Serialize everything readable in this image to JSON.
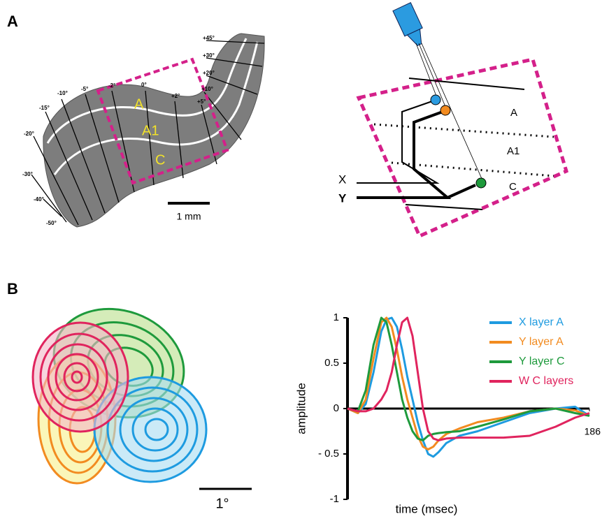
{
  "panel_labels": [
    "A",
    "B"
  ],
  "lgn_map": {
    "degree_labels": [
      "+45°",
      "+30°",
      "+20°",
      "+10°",
      "+5°",
      "+2°",
      "0°",
      "-2°",
      "-5°",
      "-10°",
      "-15°",
      "-20°",
      "-30°",
      "-40°",
      "-50°"
    ],
    "layer_labels": [
      "A",
      "A1",
      "C"
    ],
    "scale_bar": "1 mm"
  },
  "recording_diagram": {
    "layer_labels": [
      "A",
      "A1",
      "C"
    ],
    "cell_types": [
      "X",
      "Y"
    ]
  },
  "receptive_fields": {
    "scale_bar": "1°"
  },
  "chart_data": {
    "type": "line",
    "xlabel": "time (msec)",
    "ylabel": "amplitude",
    "x": [
      0,
      8,
      14,
      20,
      26,
      30,
      34,
      38,
      42,
      46,
      50,
      54,
      58,
      62,
      66,
      70,
      76,
      86,
      100,
      120,
      140,
      160,
      175,
      186
    ],
    "series": [
      {
        "name": "X layer A",
        "color": "#1e9be0",
        "values": [
          0,
          -0.05,
          0.05,
          0.4,
          0.85,
          0.98,
          1,
          0.9,
          0.65,
          0.35,
          0.1,
          -0.15,
          -0.35,
          -0.5,
          -0.53,
          -0.48,
          -0.38,
          -0.3,
          -0.25,
          -0.15,
          -0.05,
          0,
          0.02,
          -0.08
        ]
      },
      {
        "name": "Y layer A",
        "color": "#f28b20",
        "values": [
          0,
          -0.05,
          0.1,
          0.55,
          0.95,
          1,
          0.9,
          0.65,
          0.35,
          0.1,
          -0.1,
          -0.3,
          -0.42,
          -0.45,
          -0.42,
          -0.35,
          -0.28,
          -0.22,
          -0.15,
          -0.1,
          -0.03,
          0,
          -0.02,
          -0.08
        ]
      },
      {
        "name": "Y layer C",
        "color": "#1e9a3c",
        "values": [
          0,
          -0.03,
          0.2,
          0.7,
          1,
          0.95,
          0.7,
          0.4,
          0.1,
          -0.1,
          -0.25,
          -0.33,
          -0.35,
          -0.3,
          -0.28,
          -0.27,
          -0.26,
          -0.25,
          -0.2,
          -0.12,
          -0.03,
          0,
          -0.05,
          -0.08
        ]
      },
      {
        "name": "W C layers",
        "color": "#e0245e",
        "values": [
          0,
          -0.03,
          -0.03,
          0,
          0.1,
          0.2,
          0.4,
          0.7,
          0.95,
          1,
          0.8,
          0.4,
          0,
          -0.25,
          -0.33,
          -0.35,
          -0.33,
          -0.32,
          -0.32,
          -0.32,
          -0.3,
          -0.2,
          -0.1,
          -0.05
        ]
      }
    ],
    "xlim": [
      0,
      186
    ],
    "xticks": [
      186
    ],
    "ylim": [
      -1,
      1
    ],
    "yticks": [
      1,
      0.5,
      0,
      {
        "value": -0.5,
        "label": "- 0.5"
      },
      -1
    ],
    "grid": false
  }
}
